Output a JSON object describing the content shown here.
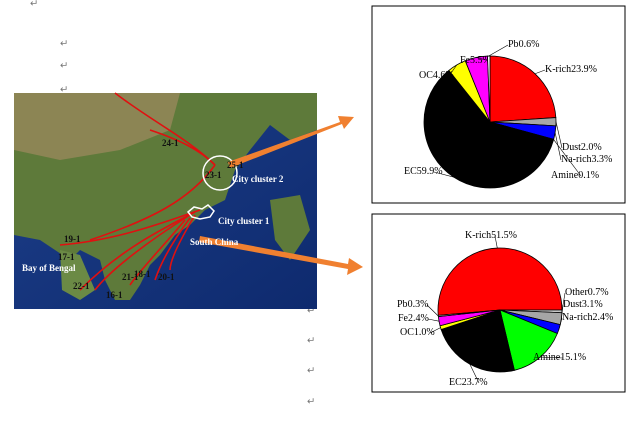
{
  "paragraph_mark": "↵",
  "map": {
    "labels": [
      "24-1",
      "25-1",
      "23-1",
      "City cluster 2",
      "City cluster 1",
      "South China",
      "19-1",
      "17-1",
      "Bay of Bengal",
      "21-1",
      "20-1",
      "22-1",
      "16-1",
      "18-1"
    ]
  },
  "chart_data": [
    {
      "type": "pie",
      "categories": [
        "K-rich",
        "Dust",
        "Na-rich",
        "Amine",
        "EC",
        "OC",
        "Fe",
        "Pb"
      ],
      "values": [
        23.9,
        2.0,
        3.3,
        0.1,
        59.9,
        4.6,
        5.5,
        0.6
      ],
      "value_labels": [
        "23.9%",
        "2.0%",
        "3.3%",
        "0.1%",
        "59.9%",
        "4.6%",
        "5.5%",
        "0.6%"
      ],
      "colors": [
        "#ff0000",
        "#a6a6a6",
        "#0000ff",
        "#00ff00",
        "#000000",
        "#ffff00",
        "#ff00ff",
        "#ffffff"
      ]
    },
    {
      "type": "pie",
      "categories": [
        "K-rich",
        "Other",
        "Dust",
        "Na-rich",
        "Amine",
        "EC",
        "OC",
        "Fe",
        "Pb"
      ],
      "values": [
        51.5,
        0.7,
        3.1,
        2.4,
        15.1,
        23.7,
        1.0,
        2.4,
        0.3
      ],
      "value_labels": [
        "51.5%",
        "0.7%",
        "3.1%",
        "2.4%",
        "15.1%",
        "23.7%",
        "1.0%",
        "2.4%",
        "0.3%"
      ],
      "colors": [
        "#ff0000",
        "#c8c8c8",
        "#a6a6a6",
        "#0000ff",
        "#00ff00",
        "#000000",
        "#ffff00",
        "#ff00ff",
        "#ffffff"
      ]
    }
  ]
}
